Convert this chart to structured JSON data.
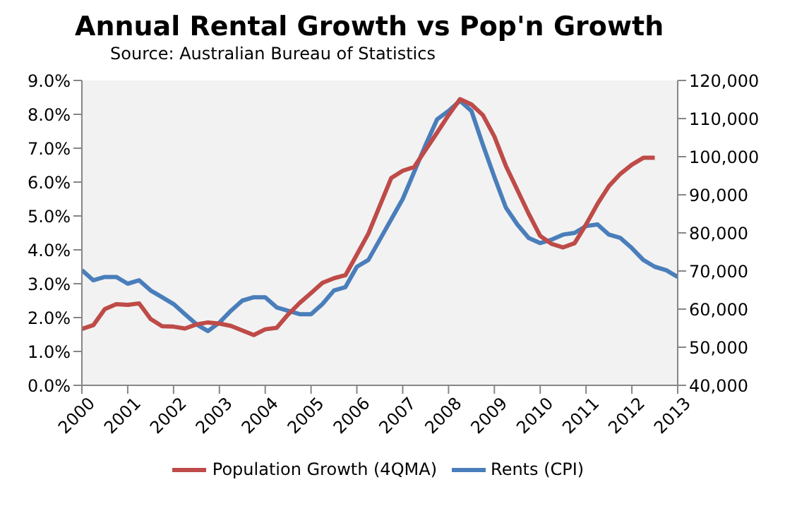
{
  "chart_data": {
    "type": "line",
    "title": "Annual Rental Growth vs Pop'n Growth",
    "subtitle": "Source: Australian Bureau of Statistics",
    "xlim": [
      2000,
      2013
    ],
    "xticks": [
      2000,
      2001,
      2002,
      2003,
      2004,
      2005,
      2006,
      2007,
      2008,
      2009,
      2010,
      2011,
      2012,
      2013
    ],
    "ylim": [
      0,
      9
    ],
    "yticks": [
      {
        "value": 0,
        "label": "0.0%"
      },
      {
        "value": 1,
        "label": "1.0%"
      },
      {
        "value": 2,
        "label": "2.0%"
      },
      {
        "value": 3,
        "label": "3.0%"
      },
      {
        "value": 4,
        "label": "4.0%"
      },
      {
        "value": 5,
        "label": "5.0%"
      },
      {
        "value": 6,
        "label": "6.0%"
      },
      {
        "value": 7,
        "label": "7.0%"
      },
      {
        "value": 8,
        "label": "8.0%"
      },
      {
        "value": 9,
        "label": "9.0%"
      }
    ],
    "y2lim": [
      40000,
      120000
    ],
    "y2ticks": [
      {
        "value": 40000,
        "label": "40,000"
      },
      {
        "value": 50000,
        "label": "50,000"
      },
      {
        "value": 60000,
        "label": "60,000"
      },
      {
        "value": 70000,
        "label": "70,000"
      },
      {
        "value": 80000,
        "label": "80,000"
      },
      {
        "value": 90000,
        "label": "90,000"
      },
      {
        "value": 100000,
        "label": "100,000"
      },
      {
        "value": 110000,
        "label": "110,000"
      },
      {
        "value": 120000,
        "label": "120,000"
      }
    ],
    "grid": false,
    "legend": "bottom",
    "marker": "none",
    "line_style": "solid",
    "series": [
      {
        "name": "Rents (CPI)",
        "color": "#4a7ebb",
        "x": [
          2000,
          2000.25,
          2000.5,
          2000.75,
          2001,
          2001.25,
          2001.5,
          2001.75,
          2002,
          2002.25,
          2002.5,
          2002.75,
          2003,
          2003.25,
          2003.5,
          2003.75,
          2004,
          2004.25,
          2004.5,
          2004.75,
          2005,
          2005.25,
          2005.5,
          2005.75,
          2006,
          2006.25,
          2006.5,
          2006.75,
          2007,
          2007.25,
          2007.5,
          2007.75,
          2008,
          2008.25,
          2008.5,
          2008.75,
          2009,
          2009.25,
          2009.5,
          2009.75,
          2010,
          2010.25,
          2010.5,
          2010.75,
          2011,
          2011.25,
          2011.5,
          2011.75,
          2012,
          2012.25,
          2012.5,
          2012.75,
          2013
        ],
        "values": [
          3.4,
          3.1,
          3.2,
          3.2,
          3.0,
          3.1,
          2.8,
          2.6,
          2.4,
          2.1,
          1.8,
          1.6,
          1.85,
          2.2,
          2.5,
          2.6,
          2.6,
          2.3,
          2.2,
          2.1,
          2.1,
          2.4,
          2.8,
          2.9,
          3.5,
          3.7,
          4.3,
          4.9,
          5.5,
          6.3,
          7.1,
          7.85,
          8.1,
          8.4,
          8.1,
          7.1,
          6.15,
          5.25,
          4.75,
          4.35,
          4.2,
          4.3,
          4.45,
          4.5,
          4.7,
          4.75,
          4.45,
          4.35,
          4.05,
          3.7,
          3.5,
          3.4,
          3.2
        ]
      },
      {
        "name": "Population Growth (4QMA)",
        "color": "#be4b48",
        "axis": "y2",
        "x": [
          2000,
          2000.25,
          2000.5,
          2000.75,
          2001,
          2001.25,
          2001.5,
          2001.75,
          2002,
          2002.25,
          2002.5,
          2002.75,
          2003,
          2003.25,
          2003.5,
          2003.75,
          2004,
          2004.25,
          2004.5,
          2004.75,
          2005,
          2005.25,
          2005.5,
          2005.75,
          2006,
          2006.25,
          2006.5,
          2006.75,
          2007,
          2007.25,
          2007.5,
          2007.75,
          2008,
          2008.25,
          2008.5,
          2008.75,
          2009,
          2009.25,
          2009.5,
          2009.75,
          2010,
          2010.25,
          2010.5,
          2010.75,
          2011,
          2011.25,
          2011.5,
          2011.75,
          2012,
          2012.25,
          2012.5
        ],
        "values": [
          54800,
          55800,
          60000,
          61300,
          61100,
          61500,
          57400,
          55500,
          55400,
          54900,
          56000,
          56500,
          56200,
          55600,
          54400,
          53200,
          54700,
          55100,
          58600,
          61600,
          64200,
          66900,
          68100,
          68900,
          74300,
          79800,
          87100,
          94400,
          96300,
          97300,
          101800,
          106300,
          110900,
          115100,
          113700,
          110900,
          105300,
          97600,
          91300,
          85000,
          79200,
          77100,
          76200,
          77300,
          82200,
          87600,
          92300,
          95500,
          97900,
          99700,
          99700
        ]
      }
    ]
  }
}
